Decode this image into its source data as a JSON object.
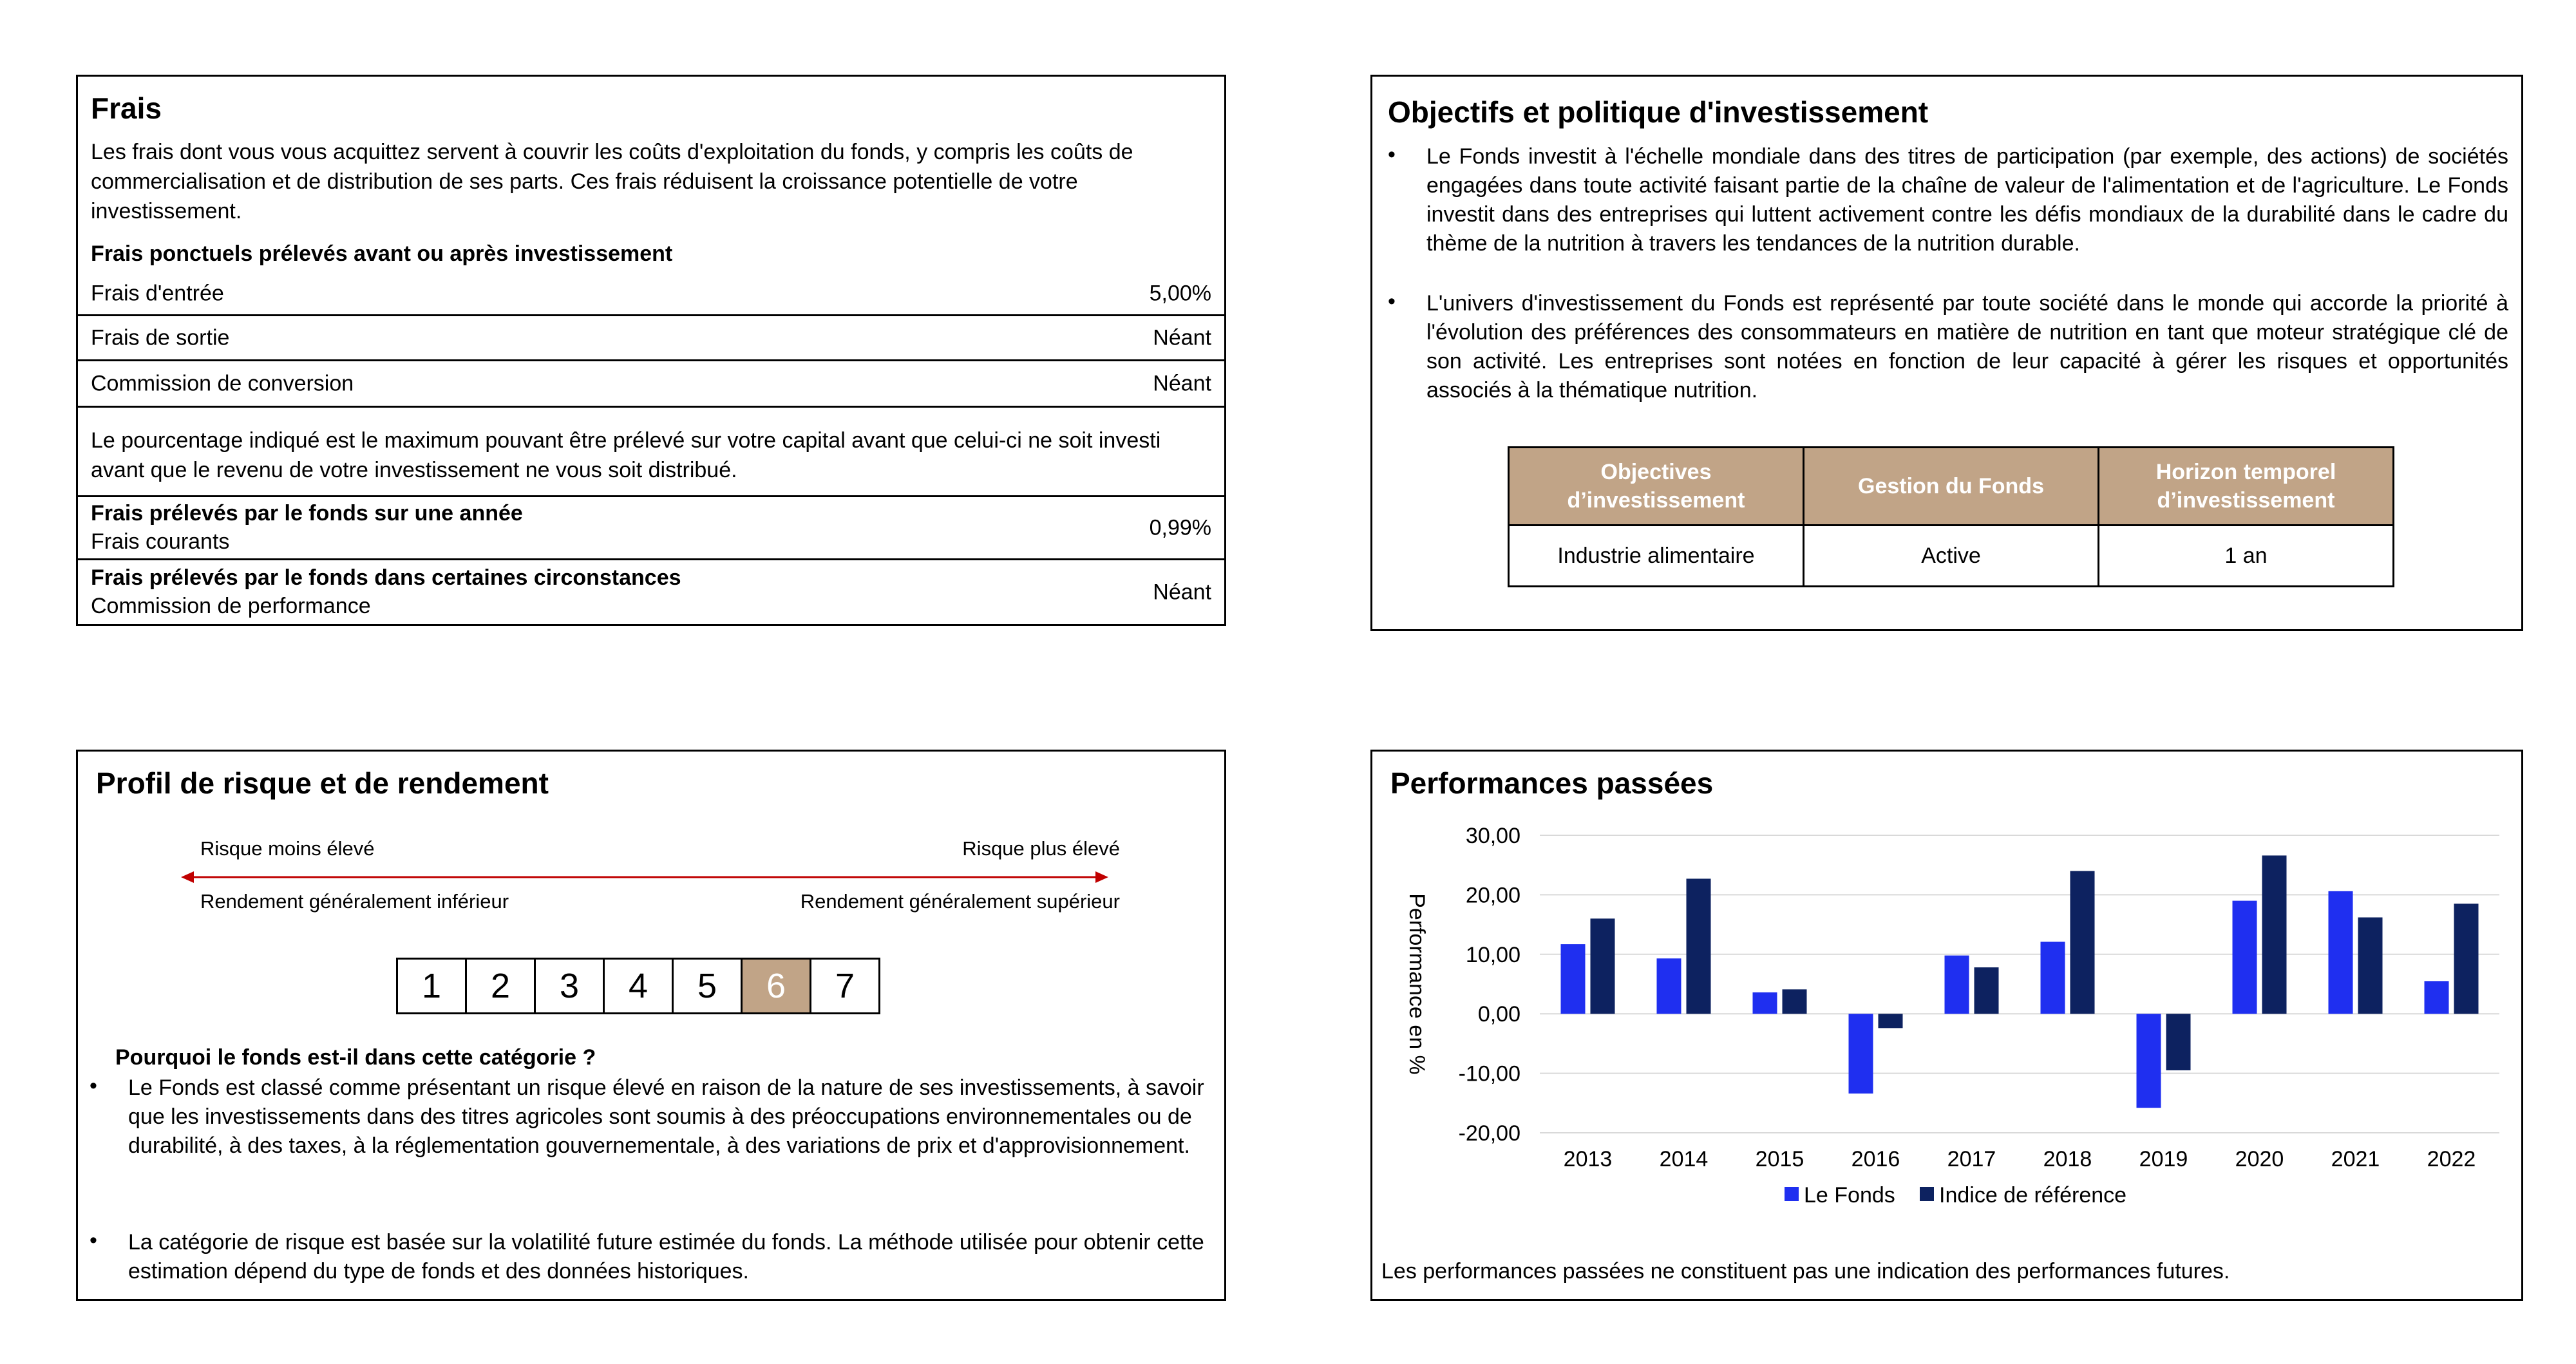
{
  "frais": {
    "title": "Frais",
    "intro": "Les frais dont vous vous acquittez servent à couvrir les coûts d'exploitation du fonds, y compris les coûts de commercialisation et de distribution de ses parts. Ces frais réduisent la croissance potentielle de votre investissement.",
    "ponctuels_heading": "Frais ponctuels prélevés avant ou après investissement",
    "entree_label": "Frais d'entrée",
    "entree_value": "5,00%",
    "sortie_label": "Frais de sortie",
    "sortie_value": "Néant",
    "conversion_label": "Commission de conversion",
    "conversion_value": "Néant",
    "note": "Le pourcentage indiqué est le maximum pouvant être prélevé sur votre capital avant que celui-ci ne soit investi avant que le revenu de votre investissement ne vous soit distribué.",
    "annee_heading": "Frais prélevés par le fonds sur une année",
    "courants_label": "Frais courants",
    "courants_value": "0,99%",
    "circonstances_heading": "Frais prélevés par le fonds dans certaines circonstances",
    "performance_label": "Commission de performance",
    "performance_value": "Néant"
  },
  "objectifs": {
    "title": "Objectifs et politique d'investissement",
    "bullets": [
      "Le Fonds investit à l'échelle mondiale dans des titres de participation (par exemple, des actions) de sociétés engagées dans toute activité faisant partie de la chaîne de valeur de l'alimentation et de l'agriculture. Le Fonds investit dans des entreprises qui luttent activement contre les défis mondiaux de la durabilité dans le cadre du thème de la nutrition à travers les tendances de la nutrition durable.",
      "L'univers d'investissement du Fonds est représenté par toute société dans le monde qui accorde la priorité à l'évolution des préférences des consommateurs en matière de nutrition en tant que moteur stratégique clé de son activité. Les entreprises sont notées en fonction de leur capacité à gérer les risques et opportunités associés à la thématique nutrition."
    ],
    "table": {
      "headers": [
        "Objectives d’investissement",
        "Gestion du Fonds",
        "Horizon temporel d’investissement"
      ],
      "values": [
        "Industrie alimentaire",
        "Active",
        "1 an"
      ]
    }
  },
  "profil": {
    "title": "Profil de risque et de rendement",
    "risk_low": "Risque moins élevé",
    "risk_high": "Risque plus élevé",
    "return_low": "Rendement généralement inférieur",
    "return_high": "Rendement généralement supérieur",
    "scale": [
      "1",
      "2",
      "3",
      "4",
      "5",
      "6",
      "7"
    ],
    "active_level": 6,
    "why_heading": "Pourquoi le fonds est-il dans cette catégorie ?",
    "bullets": [
      "Le Fonds est classé comme présentant un risque élevé en raison de la nature de ses investissements, à savoir que les investissements dans des titres agricoles sont soumis à des préoccupations environnementales ou de durabilité, à des taxes, à la réglementation gouvernementale, à des variations de prix et d'approvisionnement.",
      "La catégorie de risque est basée sur la volatilité future estimée du fonds. La méthode utilisée pour obtenir cette estimation dépend du type de fonds et des données historiques."
    ]
  },
  "performances": {
    "title": "Performances passées",
    "footnote": "Les performances passées ne constituent pas une indication des performances futures."
  },
  "colors": {
    "accent": "#c1a487",
    "fund": "#1f2ff0",
    "index": "#0d2260",
    "arrow": "#c00000"
  },
  "chart_data": {
    "type": "bar",
    "categories": [
      "2013",
      "2014",
      "2015",
      "2016",
      "2017",
      "2018",
      "2019",
      "2020",
      "2021",
      "2022"
    ],
    "series": [
      {
        "name": "Le Fonds",
        "values": [
          11.7,
          9.3,
          3.6,
          -13.4,
          9.8,
          12.1,
          -15.8,
          19.0,
          20.6,
          5.5
        ]
      },
      {
        "name": "Indice de référence",
        "values": [
          16.0,
          22.7,
          4.1,
          -2.4,
          7.8,
          24.0,
          -9.5,
          26.6,
          16.2,
          18.5
        ]
      }
    ],
    "ylabel": "Performance en %",
    "ylim": [
      -20,
      30
    ],
    "yticks": [
      "-20,00",
      "-10,00",
      "0,00",
      "10,00",
      "20,00",
      "30,00"
    ],
    "ytick_values": [
      -20,
      -10,
      0,
      10,
      20,
      30
    ],
    "grid": true,
    "legend_position": "bottom"
  }
}
